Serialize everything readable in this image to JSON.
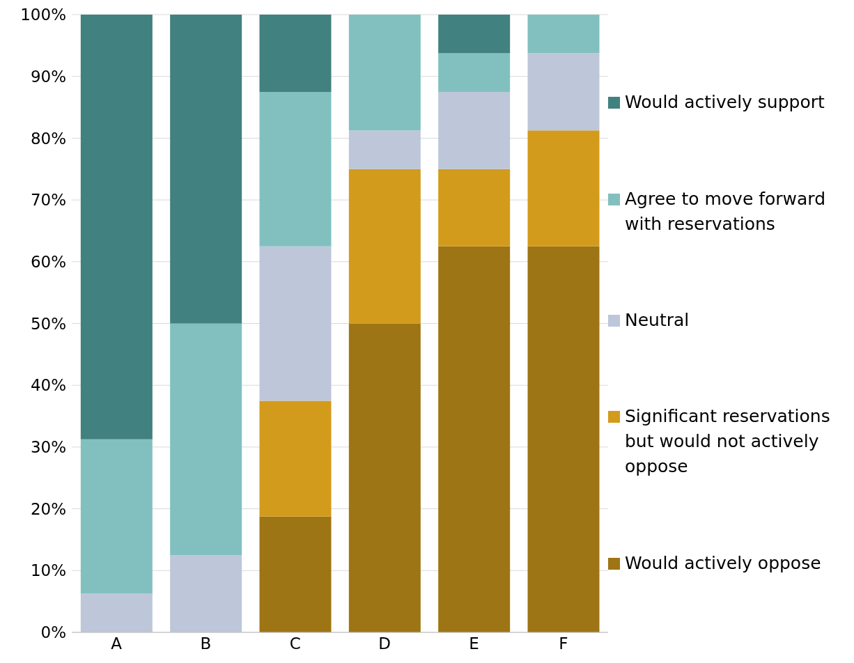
{
  "chart_data": {
    "type": "bar",
    "stacked": true,
    "categories": [
      "A",
      "B",
      "C",
      "D",
      "E",
      "F"
    ],
    "series": [
      {
        "name": "Would actively oppose",
        "color": "#9e7515",
        "values": [
          0,
          0,
          18.75,
          50,
          62.5,
          62.5
        ]
      },
      {
        "name": "Significant reservations but would not actively oppose",
        "color": "#d39b1c",
        "values": [
          0,
          0,
          18.75,
          25,
          12.5,
          18.75
        ]
      },
      {
        "name": "Neutral",
        "color": "#bdc7d9",
        "values": [
          6.25,
          12.5,
          25,
          6.25,
          12.5,
          12.5
        ]
      },
      {
        "name": "Agree to move forward with reservations",
        "color": "#82c0c0",
        "values": [
          25,
          37.5,
          25,
          18.75,
          6.25,
          6.25
        ]
      },
      {
        "name": "Would actively support",
        "color": "#41817f",
        "values": [
          68.75,
          50,
          12.5,
          0,
          6.25,
          0
        ]
      }
    ],
    "ylim": [
      0,
      100
    ],
    "yticks": [
      {
        "value": 0,
        "label": "0%"
      },
      {
        "value": 10,
        "label": "10%"
      },
      {
        "value": 20,
        "label": "20%"
      },
      {
        "value": 30,
        "label": "30%"
      },
      {
        "value": 40,
        "label": "40%"
      },
      {
        "value": 50,
        "label": "50%"
      },
      {
        "value": 60,
        "label": "60%"
      },
      {
        "value": 70,
        "label": "70%"
      },
      {
        "value": 80,
        "label": "80%"
      },
      {
        "value": 90,
        "label": "90%"
      },
      {
        "value": 100,
        "label": "100%"
      }
    ],
    "grid": "y",
    "legend": "right"
  }
}
